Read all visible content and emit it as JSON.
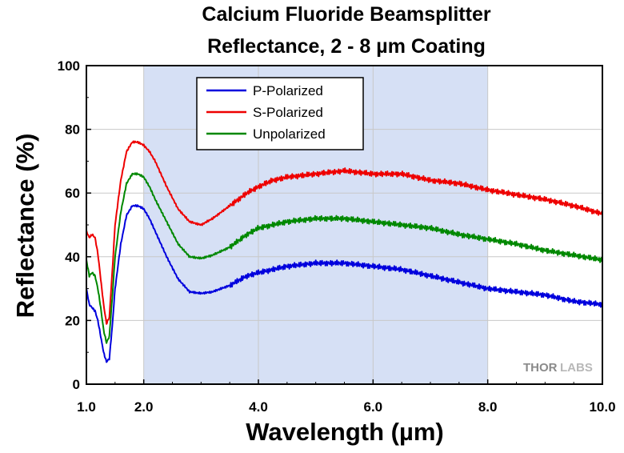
{
  "chart_data": {
    "type": "line",
    "title": "Calcium Fluoride Beamsplitter",
    "subtitle": "Reflectance, 2 - 8 µm Coating",
    "xlabel": "Wavelength (µm)",
    "ylabel": "Reflectance (%)",
    "xlim": [
      1.0,
      10.0
    ],
    "ylim": [
      0,
      100
    ],
    "x_ticks": [
      1.0,
      2.0,
      4.0,
      6.0,
      8.0,
      10.0
    ],
    "x_tick_labels": [
      "1.0",
      "2.0",
      "4.0",
      "6.0",
      "8.0",
      "10.0"
    ],
    "y_ticks": [
      0,
      20,
      40,
      60,
      80,
      100
    ],
    "y_tick_labels": [
      "0",
      "20",
      "40",
      "60",
      "80",
      "100"
    ],
    "grid": true,
    "shaded_region": {
      "x": [
        2.0,
        8.0
      ],
      "color": "#d6e0f5"
    },
    "legend_position": "top-left",
    "series": [
      {
        "name": "P-Polarized",
        "color": "#0000dd",
        "x": [
          1.0,
          1.05,
          1.1,
          1.15,
          1.2,
          1.25,
          1.3,
          1.35,
          1.4,
          1.45,
          1.5,
          1.6,
          1.7,
          1.8,
          1.9,
          2.0,
          2.1,
          2.2,
          2.4,
          2.6,
          2.8,
          3.0,
          3.2,
          3.5,
          3.8,
          4.0,
          4.25,
          4.5,
          5.0,
          5.5,
          6.0,
          6.5,
          7.0,
          7.5,
          8.0,
          8.5,
          9.0,
          9.5,
          10.0
        ],
        "values": [
          30,
          25,
          24,
          23,
          20,
          15,
          10,
          7,
          8,
          18,
          30,
          44,
          53,
          56,
          56,
          55,
          52,
          48,
          40,
          33,
          29,
          28.5,
          29,
          31,
          34,
          35,
          36,
          37,
          38,
          38,
          37,
          36,
          34,
          32,
          30,
          29,
          28,
          26,
          25
        ]
      },
      {
        "name": "S-Polarized",
        "color": "#ee0000",
        "x": [
          1.0,
          1.05,
          1.1,
          1.15,
          1.2,
          1.25,
          1.3,
          1.35,
          1.4,
          1.45,
          1.5,
          1.6,
          1.7,
          1.8,
          1.9,
          2.0,
          2.1,
          2.2,
          2.4,
          2.6,
          2.8,
          3.0,
          3.2,
          3.5,
          3.8,
          4.0,
          4.25,
          4.5,
          5.0,
          5.5,
          6.0,
          6.5,
          7.0,
          7.5,
          8.0,
          8.5,
          9.0,
          9.5,
          10.0
        ],
        "values": [
          48,
          46,
          47,
          46,
          41,
          33,
          25,
          19,
          21,
          35,
          50,
          64,
          73,
          76,
          76,
          75,
          73,
          70,
          62,
          55,
          51,
          50,
          52,
          56,
          60,
          62,
          64,
          65,
          66,
          67,
          66,
          66,
          64,
          63,
          61,
          59.5,
          58,
          56,
          53.5
        ]
      },
      {
        "name": "Unpolarized",
        "color": "#008800",
        "x": [
          1.0,
          1.05,
          1.1,
          1.15,
          1.2,
          1.25,
          1.3,
          1.35,
          1.4,
          1.45,
          1.5,
          1.6,
          1.7,
          1.8,
          1.9,
          2.0,
          2.1,
          2.2,
          2.4,
          2.6,
          2.8,
          3.0,
          3.2,
          3.5,
          3.8,
          4.0,
          4.25,
          4.5,
          5.0,
          5.5,
          6.0,
          6.5,
          7.0,
          7.5,
          8.0,
          8.5,
          9.0,
          9.5,
          10.0
        ],
        "values": [
          39,
          34,
          35,
          34,
          30,
          24,
          17,
          13,
          15,
          27,
          40,
          54,
          63,
          66,
          66,
          65,
          62,
          58,
          51,
          44,
          40,
          39.5,
          40.5,
          43,
          47,
          49,
          50,
          51,
          52,
          52,
          51,
          50,
          49,
          47,
          45.5,
          44,
          42,
          40.5,
          39
        ]
      }
    ]
  },
  "watermark": {
    "thor": "THOR",
    "labs": "LABS"
  }
}
